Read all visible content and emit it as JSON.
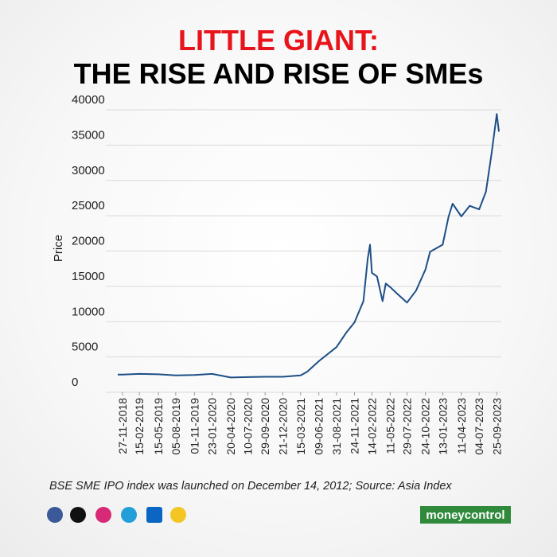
{
  "chart_data": {
    "type": "line",
    "title": "LITTLE GIANT:",
    "subtitle": "THE RISE AND RISE OF SMEs",
    "y_label": "Price",
    "color": "#1d4f86",
    "grid": true,
    "x": [
      "05-11-2018",
      "27-11-2018",
      "15-02-2019",
      "15-05-2019",
      "05-08-2019",
      "01-11-2019",
      "23-01-2020",
      "20-04-2020",
      "10-07-2020",
      "29-09-2020",
      "21-12-2020",
      "15-03-2021",
      "15-04-2021",
      "09-06-2021",
      "31-08-2021",
      "15-10-2021",
      "24-11-2021",
      "05-01-2022",
      "25-01-2022",
      "05-02-2022",
      "14-02-2022",
      "10-03-2022",
      "05-04-2022",
      "20-04-2022",
      "11-05-2022",
      "15-06-2022",
      "29-07-2022",
      "10-09-2022",
      "24-10-2022",
      "15-11-2022",
      "13-01-2023",
      "10-02-2023",
      "01-03-2023",
      "11-04-2023",
      "20-05-2023",
      "04-07-2023",
      "05-08-2023",
      "01-09-2023",
      "25-09-2023",
      "05-10-2023"
    ],
    "values": [
      1600,
      1600,
      1700,
      1650,
      1500,
      1550,
      1700,
      1200,
      1250,
      1300,
      1300,
      1500,
      2000,
      3500,
      5500,
      7500,
      9000,
      12000,
      18000,
      20000,
      16000,
      15500,
      12000,
      14500,
      14000,
      13000,
      11800,
      13500,
      16500,
      19000,
      20000,
      24000,
      25800,
      24000,
      25500,
      25000,
      27500,
      33000,
      38500,
      36000
    ],
    "ylim": [
      0,
      40000
    ],
    "yticks": [
      0,
      5000,
      10000,
      15000,
      20000,
      25000,
      30000,
      35000,
      40000
    ],
    "xticks": [
      "27-11-2018",
      "15-02-2019",
      "15-05-2019",
      "05-08-2019",
      "01-11-2019",
      "23-01-2020",
      "20-04-2020",
      "10-07-2020",
      "29-09-2020",
      "21-12-2020",
      "15-03-2021",
      "09-06-2021",
      "31-08-2021",
      "24-11-2021",
      "14-02-2022",
      "11-05-2022",
      "29-07-2022",
      "24-10-2022",
      "13-01-2023",
      "11-04-2023",
      "04-07-2023",
      "25-09-2023"
    ]
  },
  "footer": {
    "note": "BSE SME IPO index was launched on December 14, 2012; Source: Asia Index",
    "logo": "moneycontrol"
  }
}
